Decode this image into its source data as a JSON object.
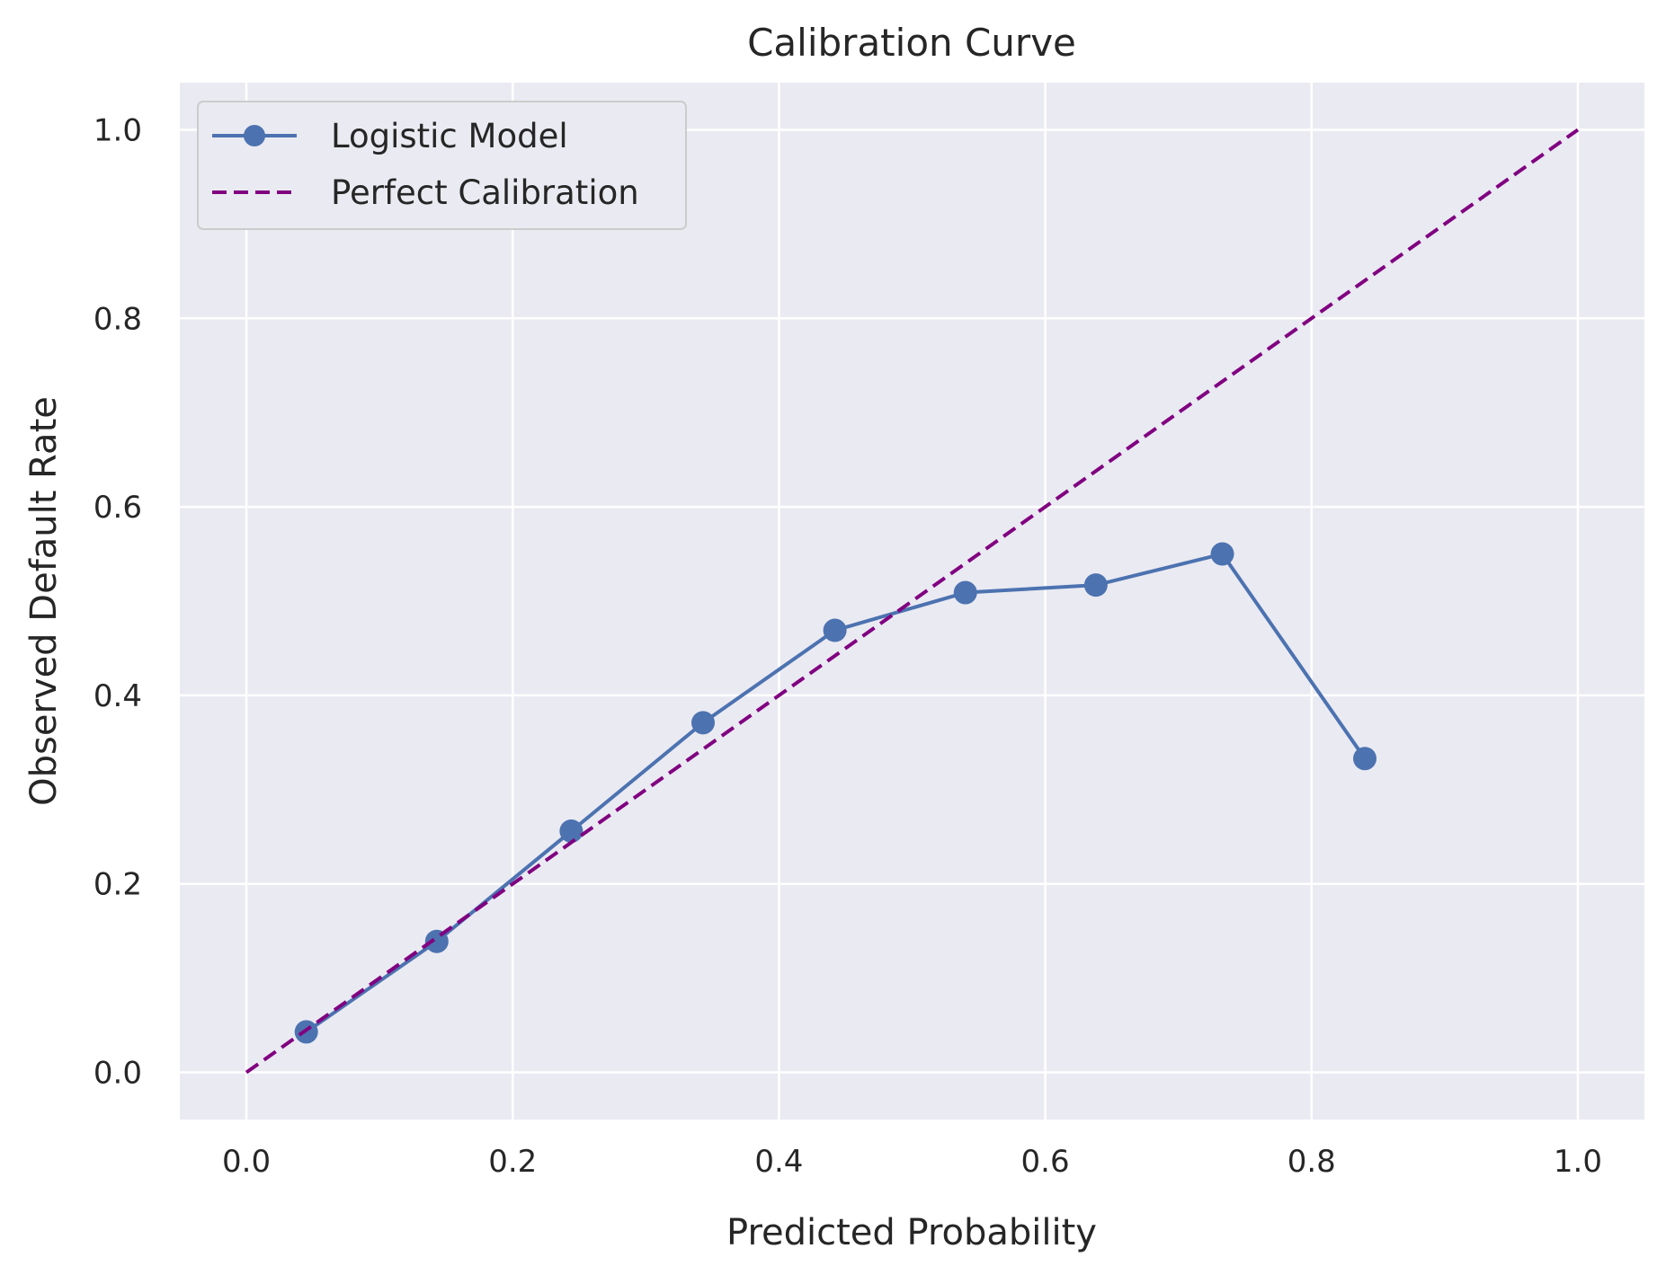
{
  "chart_data": {
    "type": "line",
    "title": "Calibration Curve",
    "xlabel": "Predicted Probability",
    "ylabel": "Observed Default Rate",
    "xlim": [
      -0.05,
      1.05
    ],
    "ylim": [
      -0.05,
      1.05
    ],
    "xticks": [
      "0.0",
      "0.2",
      "0.4",
      "0.6",
      "0.8",
      "1.0"
    ],
    "yticks": [
      "0.0",
      "0.2",
      "0.4",
      "0.6",
      "0.8",
      "1.0"
    ],
    "grid": true,
    "legend_position": "top-left",
    "series": [
      {
        "name": "Logistic Model",
        "style": "solid-with-markers",
        "color": "#4c72b0",
        "x": [
          0.045,
          0.143,
          0.244,
          0.343,
          0.442,
          0.54,
          0.638,
          0.733,
          0.84
        ],
        "y": [
          0.043,
          0.139,
          0.256,
          0.371,
          0.469,
          0.509,
          0.517,
          0.55,
          0.333
        ]
      },
      {
        "name": "Perfect Calibration",
        "style": "dashed",
        "color": "#800080",
        "x": [
          0,
          1
        ],
        "y": [
          0,
          1
        ]
      }
    ]
  },
  "colors": {
    "plot_background": "#eaeaf2",
    "grid": "#ffffff"
  }
}
